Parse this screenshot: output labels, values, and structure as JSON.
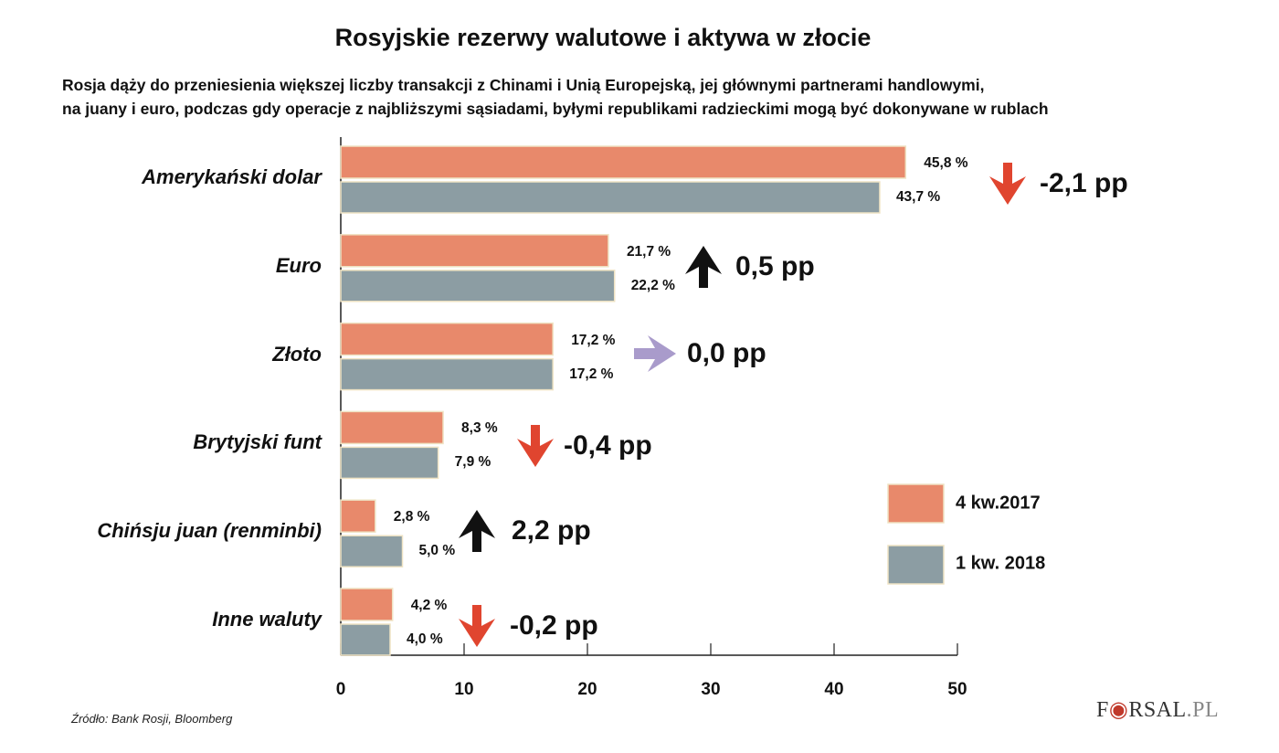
{
  "title": "Rosyjskie rezerwy walutowe i aktywa w złocie",
  "subtitle": [
    "Rosja dąży do przeniesienia większej liczby transakcji z Chinami i Unią Europejską, jej głównymi partnerami handlowymi,",
    "na juany i euro, podczas gdy operacje z najbliższymi sąsiadami, byłymi republikami radzieckimi mogą być dokonywane w rublach"
  ],
  "source": "Źródło:  Bank Rosji, Bloomberg",
  "logo": "FORSAL.PL",
  "chart_data": {
    "type": "bar",
    "orientation": "horizontal",
    "categories": [
      "Amerykański dolar",
      "Euro",
      "Złoto",
      "Brytyjski funt",
      "Chińsju juan (renminbi)",
      "Inne waluty"
    ],
    "series": [
      {
        "name": "4 kw.2017",
        "color": "#E8896B",
        "values": [
          45.8,
          21.7,
          17.2,
          8.3,
          2.8,
          4.2
        ],
        "labels": [
          "45,8 %",
          "21,7 %",
          "17,2 %",
          "8,3 %",
          "2,8 %",
          "4,2 %"
        ]
      },
      {
        "name": "1 kw. 2018",
        "color": "#8C9DA3",
        "values": [
          43.7,
          22.2,
          17.2,
          7.9,
          5.0,
          4.0
        ],
        "labels": [
          "43,7 %",
          "22,2 %",
          "17,2 %",
          "7,9 %",
          "5,0 %",
          "4,0 %"
        ]
      }
    ],
    "changes": [
      {
        "label": "-2,1 pp",
        "direction": "down",
        "color": "#E0452F"
      },
      {
        "label": "0,5 pp",
        "direction": "up",
        "color": "#111111"
      },
      {
        "label": "0,0 pp",
        "direction": "right",
        "color": "#A99BCB"
      },
      {
        "label": "-0,4 pp",
        "direction": "down",
        "color": "#E0452F"
      },
      {
        "label": "2,2 pp",
        "direction": "up",
        "color": "#111111"
      },
      {
        "label": "-0,2 pp",
        "direction": "down",
        "color": "#E0452F"
      }
    ],
    "xlim": [
      0,
      50
    ],
    "xticks": [
      "0",
      "10",
      "20",
      "30",
      "40",
      "50"
    ],
    "grid": false,
    "legend": "right"
  }
}
